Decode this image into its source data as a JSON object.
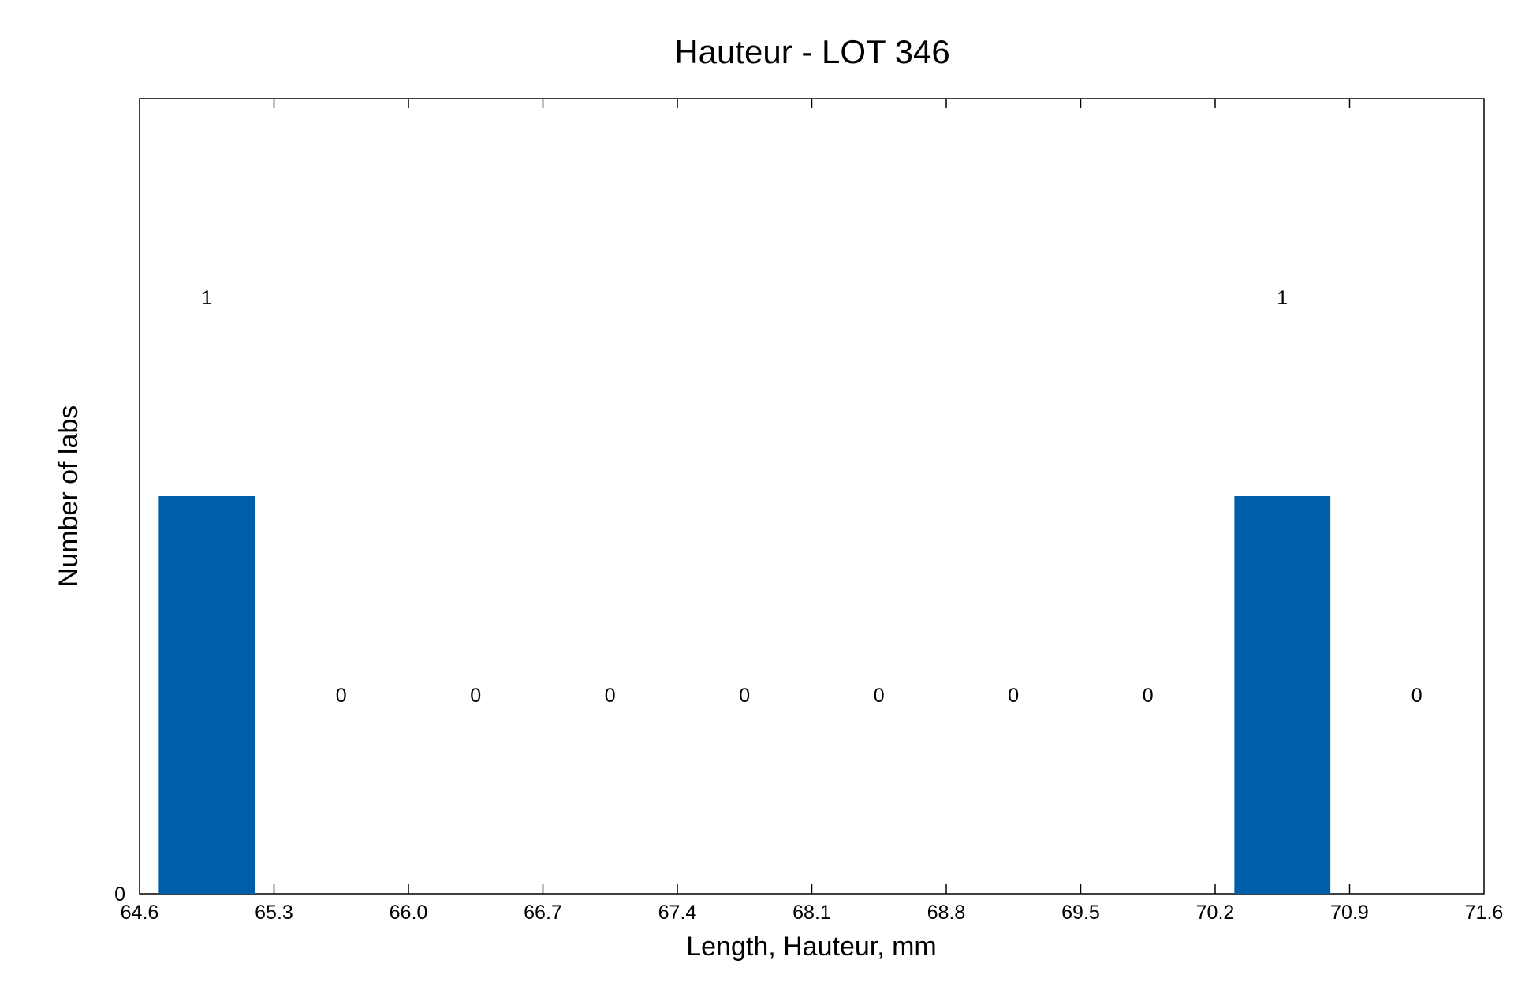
{
  "chart_data": {
    "type": "bar",
    "title": "Hauteur - LOT 346",
    "xlabel": "Length, Hauteur, mm",
    "ylabel": "Number of labs",
    "x_ticks": [
      "64.6",
      "65.3",
      "66.0",
      "66.7",
      "67.4",
      "68.1",
      "68.8",
      "69.5",
      "70.2",
      "70.9",
      "71.6"
    ],
    "y_ticks": [
      "0"
    ],
    "xlim": [
      64.6,
      71.6
    ],
    "ylim": [
      0,
      2
    ],
    "bins": [
      {
        "center": 64.95,
        "value": 1,
        "label": "1"
      },
      {
        "center": 65.65,
        "value": 0,
        "label": "0"
      },
      {
        "center": 66.35,
        "value": 0,
        "label": "0"
      },
      {
        "center": 67.05,
        "value": 0,
        "label": "0"
      },
      {
        "center": 67.75,
        "value": 0,
        "label": "0"
      },
      {
        "center": 68.45,
        "value": 0,
        "label": "0"
      },
      {
        "center": 69.15,
        "value": 0,
        "label": "0"
      },
      {
        "center": 69.85,
        "value": 0,
        "label": "0"
      },
      {
        "center": 70.55,
        "value": 1,
        "label": "1"
      },
      {
        "center": 71.25,
        "value": 0,
        "label": "0"
      }
    ],
    "bar_width": 0.5,
    "bar_color": "#005da8",
    "grid": false,
    "legend": "none"
  }
}
